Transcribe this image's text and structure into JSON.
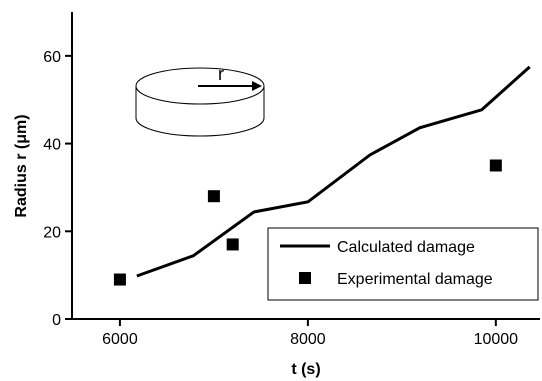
{
  "chart_data": {
    "type": "line",
    "x_label": "t (s)",
    "y_label": "Radius r (μm)",
    "inset_label": "r",
    "xlim": [
      5490,
      10470
    ],
    "ylim": [
      0,
      70
    ],
    "xticks": [
      6000,
      8000,
      10000
    ],
    "yticks": [
      0,
      20,
      40,
      60
    ],
    "legend": "lower right",
    "series": [
      {
        "name": "Calculated damage",
        "type": "line",
        "color": "#000000",
        "x": [
          6180,
          6780,
          7425,
          8000,
          8660,
          9190,
          9850,
          10360
        ],
        "values": [
          9.8,
          14.4,
          24.4,
          26.7,
          37.4,
          43.6,
          47.7,
          57.5
        ]
      },
      {
        "name": "Experimental damage",
        "type": "scatter",
        "color": "#000000",
        "x": [
          6000,
          7000,
          7200,
          10000
        ],
        "values": [
          9,
          28,
          17,
          35
        ]
      }
    ]
  }
}
